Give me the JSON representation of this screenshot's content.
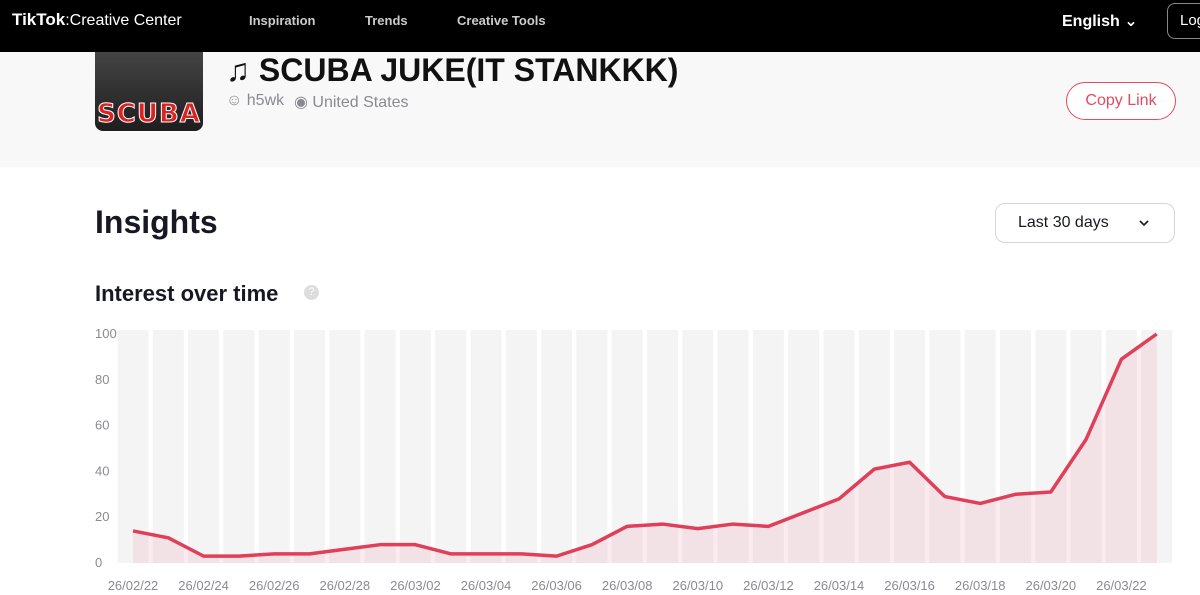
{
  "nav": {
    "logo": "TikTok",
    "logo_sub": "Creative Center",
    "links": [
      "Inspiration",
      "Trends",
      "Creative Tools"
    ],
    "language": "English",
    "login": "Log in"
  },
  "song": {
    "title": "SCUBA JUKE(IT STANKKK)",
    "author": "h5wk",
    "location": "United States",
    "cover_text": "SCUBA",
    "copy_link": "Copy Link"
  },
  "insights": {
    "title": "Insights",
    "range": "Last 30 days"
  },
  "chart_data": {
    "type": "line",
    "title": "Interest over time",
    "categories": [
      "26/02/22",
      null,
      "26/02/24",
      null,
      "26/02/26",
      null,
      "26/02/28",
      null,
      "26/03/02",
      null,
      "26/03/04",
      null,
      "26/03/06",
      null,
      "26/03/08",
      null,
      "26/03/10",
      null,
      "26/03/12",
      null,
      "26/03/14",
      null,
      "26/03/16",
      null,
      "26/03/18",
      null,
      "26/03/20",
      null,
      "26/03/22",
      null
    ],
    "values": [
      14,
      11,
      3,
      3,
      4,
      4,
      6,
      8,
      8,
      4,
      4,
      4,
      3,
      8,
      16,
      17,
      15,
      17,
      16,
      22,
      28,
      41,
      44,
      29,
      26,
      30,
      31,
      54,
      89,
      100
    ],
    "color": "#df3f58",
    "ylim": [
      0,
      100
    ],
    "yticks": [
      0,
      20,
      40,
      60,
      80,
      100
    ],
    "grid": false
  }
}
